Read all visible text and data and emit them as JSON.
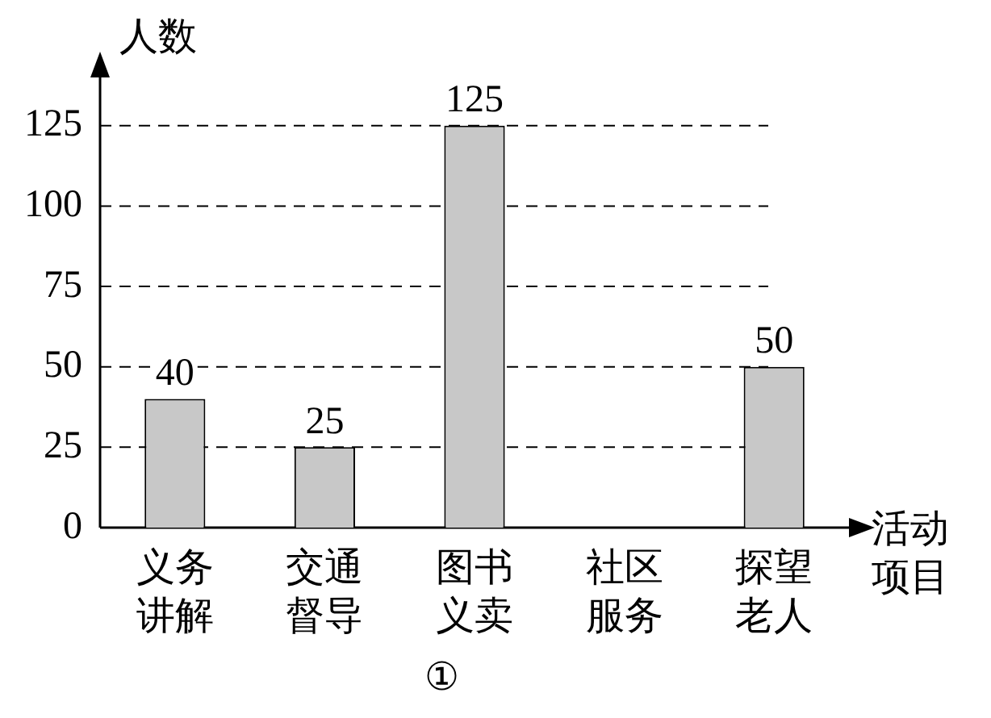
{
  "chart_data": {
    "type": "bar",
    "ylabel": "人数",
    "xlabel": "活动项目",
    "categories": [
      "义务讲解",
      "交通督导",
      "图书义卖",
      "社区服务",
      "探望老人"
    ],
    "values": [
      40,
      25,
      125,
      null,
      50
    ],
    "color": "#c8c8c8",
    "data_labels": true,
    "ylim": [
      0,
      140
    ],
    "yticks": [
      0,
      25,
      50,
      75,
      100,
      125
    ],
    "grid": "y",
    "legend": false,
    "annotations": [
      "①"
    ]
  }
}
